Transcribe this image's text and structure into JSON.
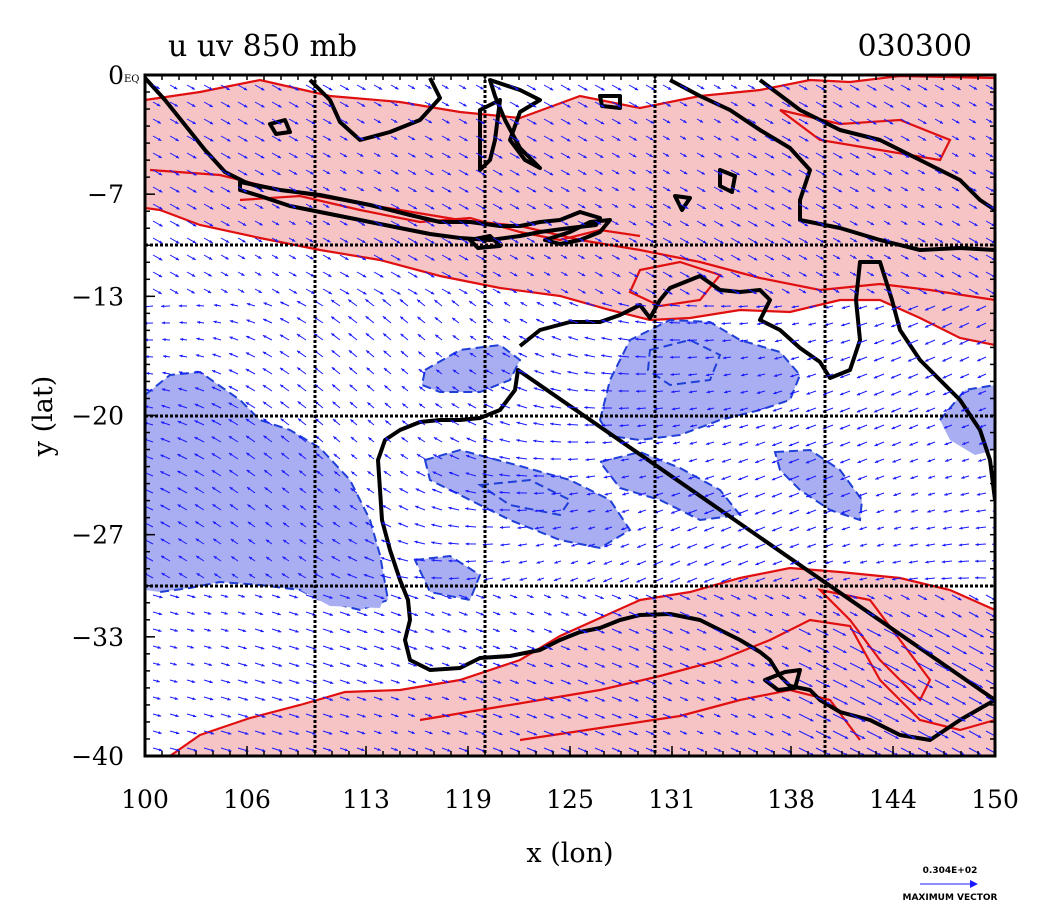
{
  "title": {
    "left": "u  uv  850  mb",
    "right": "030300"
  },
  "axes": {
    "xlabel": "x (lon)",
    "ylabel": "y (lat)",
    "xlim": [
      100,
      150
    ],
    "ylim": [
      -40,
      0
    ],
    "xticks": [
      100,
      106,
      113,
      119,
      125,
      131,
      138,
      144,
      150
    ],
    "xtick_labels": [
      "100",
      "106",
      "113",
      "119",
      "125",
      "131",
      "138",
      "144",
      "150"
    ],
    "yticks": [
      0,
      -7,
      -13,
      -20,
      -27,
      -33,
      -40
    ],
    "ytick_labels": [
      "0",
      "−7",
      "−13",
      "−20",
      "−27",
      "−33",
      "−40"
    ],
    "corner_tag": "EQ",
    "grid_lon": [
      110,
      120,
      130,
      140
    ],
    "grid_lat": [
      -10,
      -20,
      -30
    ],
    "grid": true
  },
  "legend": {
    "value": "0.304E+02",
    "label": "MAXIMUM VECTOR",
    "position": "bottom-right"
  },
  "colors": {
    "positive_fill": "#f7c4c6",
    "positive_contour": "#e01010",
    "negative_fill": "#a9aef2",
    "negative_contour": "#1f3fd8",
    "vectors": "#1a1aff",
    "coastline": "#000000"
  },
  "chart_data": {
    "type": "heatmap",
    "variable": "u",
    "level": "850 mb",
    "overlay": "uv wind vectors",
    "date_code": "030300",
    "region": {
      "lon": [
        100,
        150
      ],
      "lat": [
        -40,
        0
      ]
    },
    "max_vector_magnitude": "0.304E+02"
  }
}
